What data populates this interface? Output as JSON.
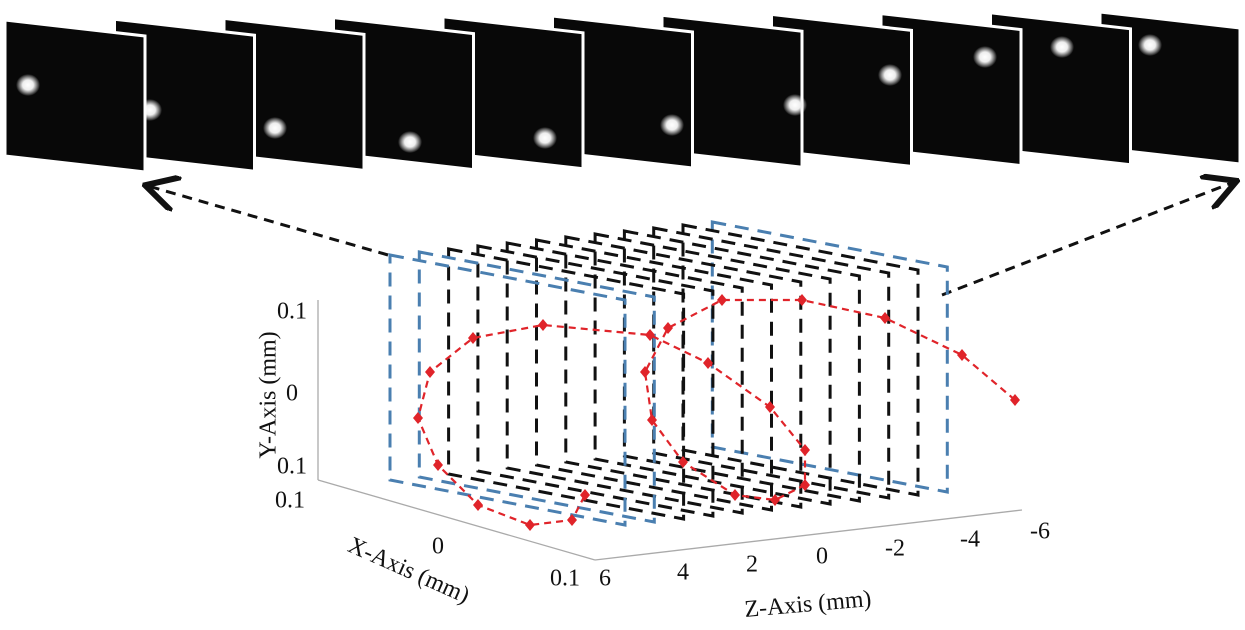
{
  "axes": {
    "y": {
      "label": "Y-Axis (mm)",
      "ticks": [
        "0.1",
        "0",
        "0.1"
      ]
    },
    "x": {
      "label": "X-Axis (mm)",
      "ticks": [
        "0.1",
        "0",
        "0.1"
      ]
    },
    "z": {
      "label": "Z-Axis (mm)",
      "ticks": [
        "6",
        "4",
        "2",
        "0",
        "-2",
        "-4",
        "-6"
      ]
    }
  }
}
